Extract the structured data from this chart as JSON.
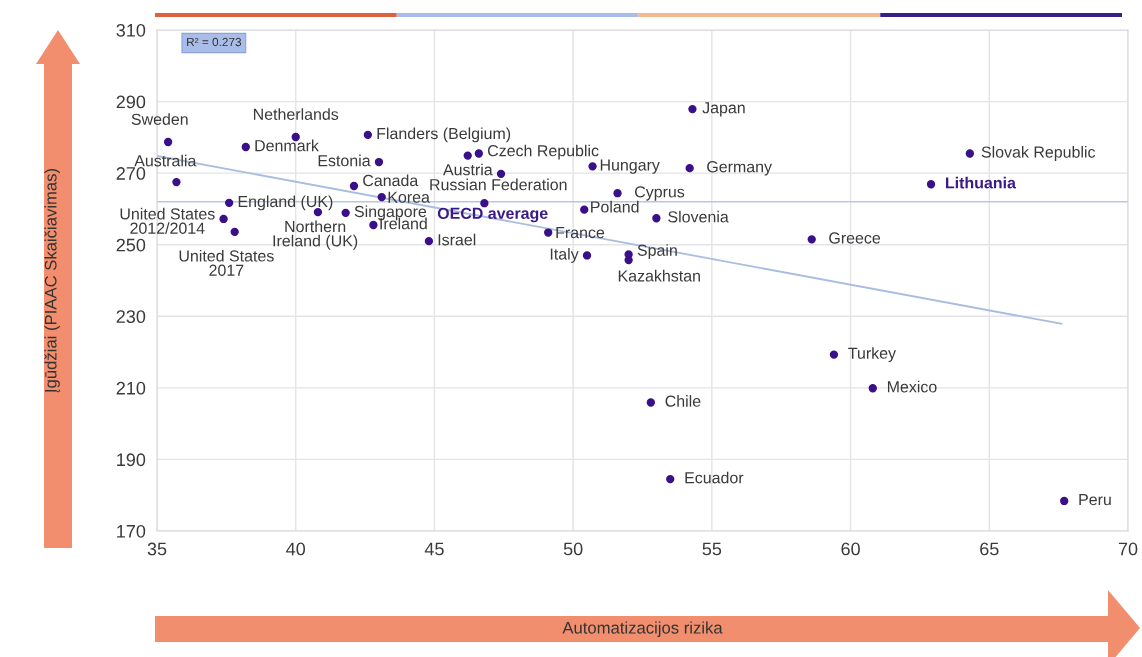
{
  "chart_data": {
    "type": "scatter",
    "xlabel": "Automatizacijos rizika",
    "ylabel": "Įgūdžiai (PIAAC Skaičiavimas)",
    "xlim": [
      35,
      70
    ],
    "xticks": [
      35,
      40,
      45,
      50,
      55,
      60,
      65,
      70
    ],
    "ylim": [
      170,
      310
    ],
    "yticks": [
      170,
      190,
      210,
      230,
      250,
      270,
      290,
      310
    ],
    "grid": true,
    "series": [
      {
        "marker": "circle",
        "color": "#3a0f8a",
        "x": [
          35.4,
          35.7,
          38.2,
          40.0,
          37.6,
          37.4,
          37.8,
          40.8,
          41.8,
          42.1,
          42.6,
          43.0,
          43.1,
          42.8,
          44.8,
          46.2,
          46.6,
          47.4,
          46.8,
          49.1,
          50.4,
          50.7,
          51.6,
          53.0,
          50.5,
          52.0,
          52.0,
          54.3,
          54.2,
          58.6,
          64.3,
          62.9,
          59.4,
          60.8,
          52.8,
          53.5,
          67.7
        ],
        "values": [
          278.7,
          267.5,
          277.3,
          280.1,
          261.7,
          257.2,
          253.6,
          259.1,
          258.9,
          266.4,
          280.7,
          273.1,
          263.3,
          255.5,
          251.0,
          274.9,
          275.5,
          269.8,
          261.6,
          253.4,
          259.8,
          271.9,
          264.4,
          257.4,
          247.0,
          247.3,
          245.7,
          287.9,
          271.4,
          251.5,
          275.5,
          266.9,
          219.3,
          209.9,
          205.9,
          184.5,
          178.4
        ]
      },
      {
        "type": "line",
        "color": "#a9bde0",
        "x": [
          35,
          67.6
        ],
        "values": [
          274.8,
          227.9
        ]
      }
    ],
    "ref_lines": [
      {
        "axis": "y",
        "value": 262,
        "label": "OECD average",
        "color": "#b7c6e6"
      }
    ],
    "annotations": [
      {
        "text": "Sweden",
        "x": 35.4,
        "y": 278.7
      },
      {
        "text": "Australia",
        "x": 35.7,
        "y": 267.5
      },
      {
        "text": "Denmark",
        "x": 38.2,
        "y": 277.3
      },
      {
        "text": "Netherlands",
        "x": 40.0,
        "y": 280.1
      },
      {
        "text": "England (UK)",
        "x": 37.6,
        "y": 261.7
      },
      {
        "text": "United States\n2012/2014",
        "x": 37.4,
        "y": 257.2
      },
      {
        "text": "United States\n2017",
        "x": 37.8,
        "y": 253.6
      },
      {
        "text": "Northern\nIreland (UK)",
        "x": 40.8,
        "y": 259.1
      },
      {
        "text": "Singapore",
        "x": 41.8,
        "y": 258.9
      },
      {
        "text": "Canada",
        "x": 42.1,
        "y": 266.4
      },
      {
        "text": "Flanders (Belgium)",
        "x": 42.6,
        "y": 280.7
      },
      {
        "text": "Estonia",
        "x": 43.0,
        "y": 273.1
      },
      {
        "text": "Korea",
        "x": 43.1,
        "y": 263.3
      },
      {
        "text": "Ireland",
        "x": 42.8,
        "y": 255.5
      },
      {
        "text": "Israel",
        "x": 44.8,
        "y": 251.0
      },
      {
        "text": "Czech Republic",
        "x": 46.6,
        "y": 275.5
      },
      {
        "text": "Austria",
        "x": 47.4,
        "y": 269.8
      },
      {
        "text": "Russian Federation",
        "x": 46.8,
        "y": 261.6
      },
      {
        "text": "France",
        "x": 49.1,
        "y": 253.4
      },
      {
        "text": "Poland",
        "x": 50.4,
        "y": 259.8
      },
      {
        "text": "Hungary",
        "x": 50.7,
        "y": 271.9
      },
      {
        "text": "Cyprus",
        "x": 51.6,
        "y": 264.4
      },
      {
        "text": "Slovenia",
        "x": 53.0,
        "y": 257.4
      },
      {
        "text": "Italy",
        "x": 50.5,
        "y": 247.0
      },
      {
        "text": "Spain",
        "x": 52.0,
        "y": 247.3
      },
      {
        "text": "Kazakhstan",
        "x": 52.0,
        "y": 245.7
      },
      {
        "text": "Japan",
        "x": 54.3,
        "y": 287.9
      },
      {
        "text": "Germany",
        "x": 54.2,
        "y": 271.4
      },
      {
        "text": "Greece",
        "x": 58.6,
        "y": 251.5
      },
      {
        "text": "Slovak Republic",
        "x": 64.3,
        "y": 275.5
      },
      {
        "text": "Lithuania",
        "x": 62.9,
        "y": 266.9
      },
      {
        "text": "Turkey",
        "x": 59.4,
        "y": 219.3
      },
      {
        "text": "Mexico",
        "x": 60.8,
        "y": 209.9
      },
      {
        "text": "Chile",
        "x": 52.8,
        "y": 205.9
      },
      {
        "text": "Ecuador",
        "x": 53.5,
        "y": 184.5
      },
      {
        "text": "Peru",
        "x": 67.7,
        "y": 178.4
      },
      "R² = 0.273"
    ]
  }
}
